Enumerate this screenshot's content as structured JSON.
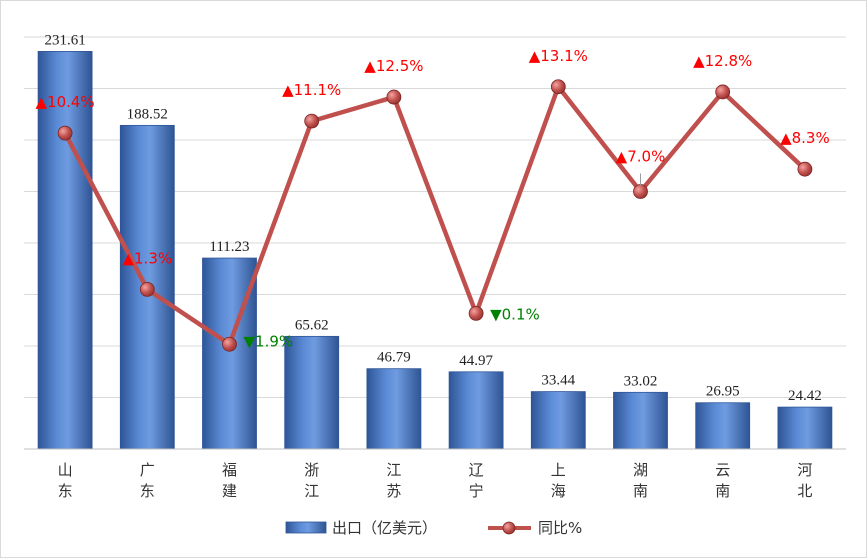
{
  "chart_data": {
    "type": "bar",
    "categories": [
      "山东",
      "广东",
      "福建",
      "浙江",
      "江苏",
      "辽宁",
      "上海",
      "湖南",
      "云南",
      "河北"
    ],
    "series": [
      {
        "name": "出口（亿美元）",
        "type": "bar",
        "values": [
          231.61,
          188.52,
          111.23,
          65.62,
          46.79,
          44.97,
          33.44,
          33.02,
          26.95,
          24.42
        ],
        "labels": [
          "231.61",
          "188.52",
          "111.23",
          "65.62",
          "46.79",
          "44.97",
          "33.44",
          "33.02",
          "26.95",
          "24.42"
        ]
      },
      {
        "name": "同比%",
        "type": "line",
        "values": [
          10.4,
          1.3,
          -1.9,
          11.1,
          12.5,
          -0.1,
          13.1,
          7.0,
          12.8,
          8.3
        ],
        "labels": [
          "▲10.4%",
          "▲1.3%",
          "▼1.9%",
          "▲11.1%",
          "▲12.5%",
          "▼0.1%",
          "▲13.1%",
          "▲7.0%",
          "▲12.8%",
          "▲8.3%"
        ]
      }
    ],
    "bar_ylim": [
      0,
      240
    ],
    "line_ylim": [
      -8,
      16
    ],
    "grid": true,
    "legend_position": "bottom",
    "colors": {
      "bar": "#4472c4",
      "line": "#c0504d",
      "up": "#ff0000",
      "down": "#008000"
    }
  }
}
